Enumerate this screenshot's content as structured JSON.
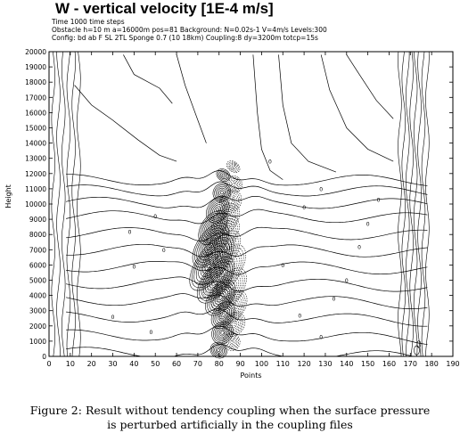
{
  "header": {
    "title": "W - vertical velocity [1E-4 m/s]",
    "time_line": "Time 1000 time steps",
    "obstacle_line": "Obstacle h=10 m a=16000m pos=81 Background: N=0.02s-1 V=4m/s Levels:300",
    "config_line": "Config: bd ab F SL 2TL Sponge 0.7 (10 18km) Coupling:8 dy=3200m totcp=15s"
  },
  "caption": {
    "line1": "Figure 2: Result without tendency coupling when the surface pressure",
    "line2": "is perturbed artificially in the coupling files"
  },
  "chart_data": {
    "type": "contour",
    "title": "W - vertical velocity [1E-4 m/s]",
    "xlabel": "Points",
    "ylabel": "Height",
    "xlim": [
      0,
      190
    ],
    "ylim": [
      0,
      20000
    ],
    "x_ticks": [
      "0",
      "10",
      "20",
      "30",
      "40",
      "50",
      "60",
      "70",
      "80",
      "90",
      "100",
      "110",
      "120",
      "130",
      "140",
      "150",
      "160",
      "170",
      "180",
      "190"
    ],
    "y_ticks": [
      "0",
      "1000",
      "2000",
      "3000",
      "4000",
      "5000",
      "6000",
      "7000",
      "8000",
      "9000",
      "10000",
      "11000",
      "12000",
      "13000",
      "14000",
      "15000",
      "16000",
      "17000",
      "18000",
      "19000",
      "20000"
    ],
    "contour_label": "0",
    "features": [
      {
        "name": "mountain-wave",
        "center_x": 81,
        "x_range": [
          68,
          95
        ],
        "z_range": [
          0,
          12500
        ]
      },
      {
        "name": "boundary-left",
        "x_range": [
          0,
          14
        ],
        "z_range": [
          0,
          20000
        ]
      },
      {
        "name": "boundary-right",
        "x_range": [
          164,
          178
        ],
        "z_range": [
          0,
          20000
        ]
      }
    ]
  }
}
